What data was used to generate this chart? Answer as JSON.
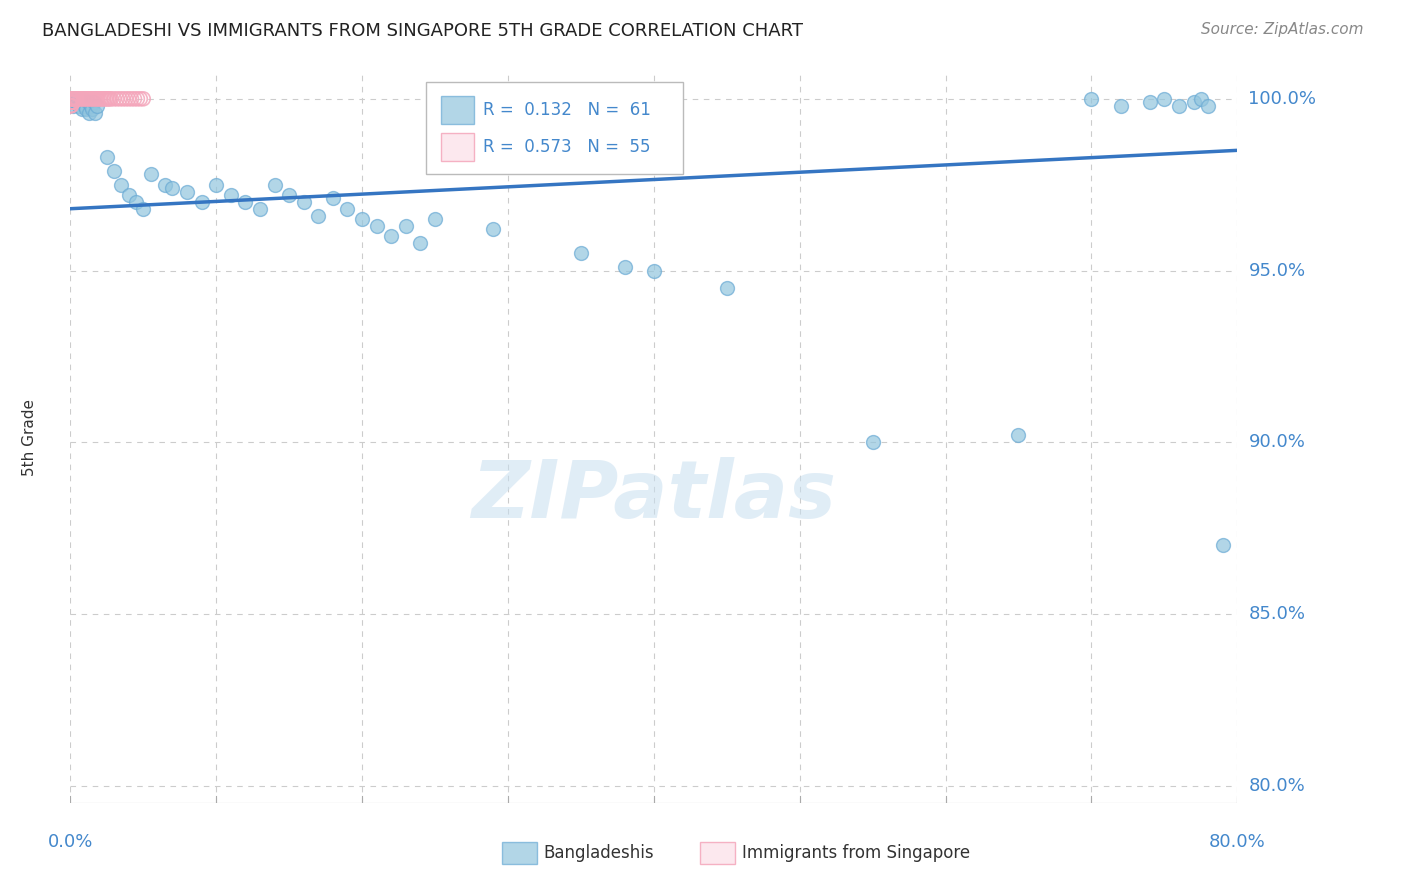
{
  "title": "BANGLADESHI VS IMMIGRANTS FROM SINGAPORE 5TH GRADE CORRELATION CHART",
  "source": "Source: ZipAtlas.com",
  "ylabel": "5th Grade",
  "legend_blue_R": "0.132",
  "legend_blue_N": "61",
  "legend_pink_R": "0.573",
  "legend_pink_N": "55",
  "legend_blue_label": "Bangladeshis",
  "legend_pink_label": "Immigrants from Singapore",
  "blue_color": "#92c5de",
  "pink_color": "#f4a6bb",
  "trend_color": "#3575c2",
  "background_color": "#ffffff",
  "grid_color": "#cccccc",
  "text_color": "#4488cc",
  "title_color": "#222222",
  "blue_scatter_x": [
    0.001,
    0.002,
    0.003,
    0.004,
    0.005,
    0.006,
    0.007,
    0.008,
    0.009,
    0.01,
    0.011,
    0.012,
    0.013,
    0.014,
    0.015,
    0.016,
    0.017,
    0.018,
    0.025,
    0.03,
    0.035,
    0.04,
    0.045,
    0.05,
    0.055,
    0.065,
    0.07,
    0.08,
    0.09,
    0.1,
    0.11,
    0.12,
    0.13,
    0.14,
    0.15,
    0.16,
    0.17,
    0.18,
    0.19,
    0.2,
    0.21,
    0.22,
    0.23,
    0.24,
    0.25,
    0.29,
    0.35,
    0.38,
    0.4,
    0.45,
    0.55,
    0.65,
    0.7,
    0.72,
    0.74,
    0.75,
    0.76,
    0.77,
    0.775,
    0.78,
    0.79
  ],
  "blue_scatter_y": [
    0.999,
    0.998,
    1.0,
    0.999,
    1.0,
    0.998,
    0.999,
    0.997,
    1.0,
    0.998,
    0.997,
    0.999,
    0.996,
    0.998,
    0.997,
    0.999,
    0.996,
    0.998,
    0.983,
    0.979,
    0.975,
    0.972,
    0.97,
    0.968,
    0.978,
    0.975,
    0.974,
    0.973,
    0.97,
    0.975,
    0.972,
    0.97,
    0.968,
    0.975,
    0.972,
    0.97,
    0.966,
    0.971,
    0.968,
    0.965,
    0.963,
    0.96,
    0.963,
    0.958,
    0.965,
    0.962,
    0.955,
    0.951,
    0.95,
    0.945,
    0.9,
    0.902,
    1.0,
    0.998,
    0.999,
    1.0,
    0.998,
    0.999,
    1.0,
    0.998,
    0.87
  ],
  "pink_scatter_x": [
    0.0002,
    0.0003,
    0.0004,
    0.0005,
    0.0006,
    0.0007,
    0.0008,
    0.0009,
    0.001,
    0.0012,
    0.0014,
    0.0016,
    0.0018,
    0.002,
    0.0022,
    0.0025,
    0.003,
    0.0035,
    0.004,
    0.0045,
    0.005,
    0.006,
    0.007,
    0.008,
    0.009,
    0.01,
    0.011,
    0.012,
    0.013,
    0.014,
    0.015,
    0.016,
    0.017,
    0.018,
    0.019,
    0.02,
    0.021,
    0.022,
    0.023,
    0.024,
    0.025,
    0.026,
    0.027,
    0.028,
    0.03,
    0.032,
    0.034,
    0.036,
    0.038,
    0.04,
    0.042,
    0.044,
    0.046,
    0.048,
    0.05
  ],
  "pink_scatter_y": [
    0.998,
    0.999,
    1.0,
    0.998,
    0.999,
    1.0,
    0.998,
    0.999,
    1.0,
    0.999,
    1.0,
    0.999,
    1.0,
    0.999,
    1.0,
    1.0,
    1.0,
    1.0,
    1.0,
    1.0,
    1.0,
    1.0,
    1.0,
    1.0,
    1.0,
    1.0,
    1.0,
    1.0,
    1.0,
    1.0,
    1.0,
    1.0,
    1.0,
    1.0,
    1.0,
    1.0,
    1.0,
    1.0,
    1.0,
    1.0,
    1.0,
    1.0,
    1.0,
    1.0,
    1.0,
    1.0,
    1.0,
    1.0,
    1.0,
    1.0,
    1.0,
    1.0,
    1.0,
    1.0,
    1.0
  ],
  "xlim": [
    0.0,
    0.8
  ],
  "ylim": [
    0.795,
    1.008
  ],
  "ytick_values": [
    0.8,
    0.85,
    0.9,
    0.95,
    1.0
  ],
  "ytick_labels": [
    "80.0%",
    "85.0%",
    "90.0%",
    "95.0%",
    "100.0%"
  ],
  "xtick_values": [
    0.0,
    0.1,
    0.2,
    0.3,
    0.4,
    0.5,
    0.6,
    0.7,
    0.8
  ],
  "xtick_labels": [
    "0.0%",
    "",
    "",
    "",
    "",
    "",
    "",
    "",
    "80.0%"
  ],
  "trend_blue_x0": 0.0,
  "trend_blue_x1": 0.8,
  "trend_blue_y0": 0.968,
  "trend_blue_y1": 0.985,
  "marker_size": 100
}
